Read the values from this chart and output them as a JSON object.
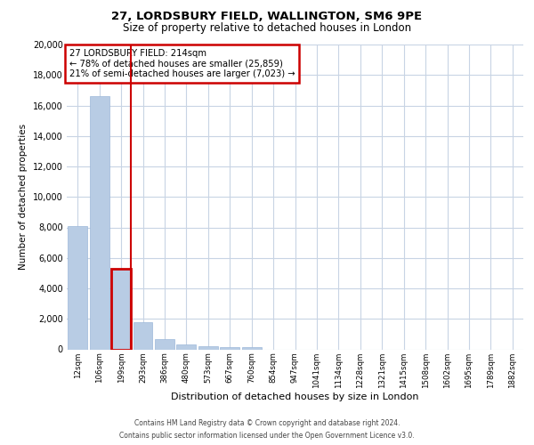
{
  "title1": "27, LORDSBURY FIELD, WALLINGTON, SM6 9PE",
  "title2": "Size of property relative to detached houses in London",
  "xlabel": "Distribution of detached houses by size in London",
  "ylabel": "Number of detached properties",
  "property_label": "27 LORDSBURY FIELD: 214sqm",
  "annotation_line1": "← 78% of detached houses are smaller (25,859)",
  "annotation_line2": "21% of semi-detached houses are larger (7,023) →",
  "bar_color": "#b8cce4",
  "bar_edge_color": "#9db8d9",
  "highlight_color": "#cc0000",
  "background_color": "#ffffff",
  "grid_color": "#c8d4e4",
  "categories": [
    "12sqm",
    "106sqm",
    "199sqm",
    "293sqm",
    "386sqm",
    "480sqm",
    "573sqm",
    "667sqm",
    "760sqm",
    "854sqm",
    "947sqm",
    "1041sqm",
    "1134sqm",
    "1228sqm",
    "1321sqm",
    "1415sqm",
    "1508sqm",
    "1602sqm",
    "1695sqm",
    "1789sqm",
    "1882sqm"
  ],
  "values": [
    8100,
    16600,
    5300,
    1800,
    650,
    310,
    200,
    160,
    120,
    0,
    0,
    0,
    0,
    0,
    0,
    0,
    0,
    0,
    0,
    0,
    0
  ],
  "ylim": [
    0,
    20000
  ],
  "yticks": [
    0,
    2000,
    4000,
    6000,
    8000,
    10000,
    12000,
    14000,
    16000,
    18000,
    20000
  ],
  "highlight_bar_index": 2,
  "footer1": "Contains HM Land Registry data © Crown copyright and database right 2024.",
  "footer2": "Contains public sector information licensed under the Open Government Licence v3.0."
}
